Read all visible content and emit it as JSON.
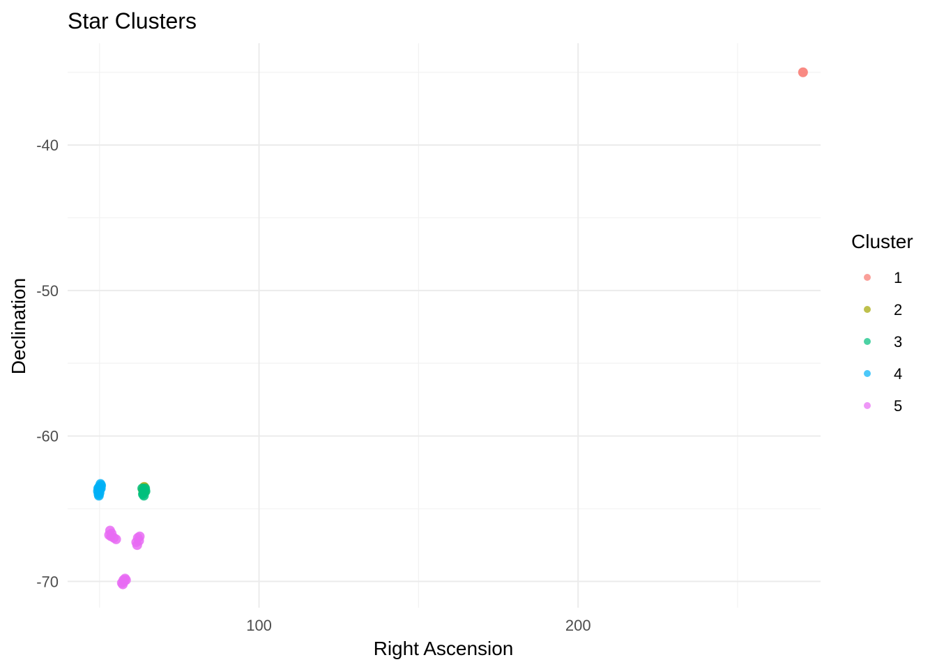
{
  "chart_data": {
    "type": "scatter",
    "title": "Star Clusters",
    "xlabel": "Right Ascension",
    "ylabel": "Declination",
    "xlim": [
      40,
      276
    ],
    "ylim": [
      -71.8,
      -33.0
    ],
    "x_ticks": [
      100,
      200
    ],
    "x_minor_ticks": [
      50,
      150,
      250
    ],
    "y_ticks": [
      -40,
      -50,
      -60,
      -70
    ],
    "y_minor_ticks": [
      -35,
      -45,
      -55,
      -65
    ],
    "grid": true,
    "legend": {
      "title": "Cluster",
      "position": "right"
    },
    "series": [
      {
        "name": "1",
        "color": "#F8766D",
        "points": [
          [
            270.5,
            -35.0
          ]
        ]
      },
      {
        "name": "2",
        "color": "#A3A500",
        "points": [
          [
            64.0,
            -63.5
          ],
          [
            63.6,
            -63.7
          ],
          [
            64.2,
            -63.8
          ]
        ]
      },
      {
        "name": "3",
        "color": "#00BF7D",
        "points": [
          [
            63.4,
            -63.6
          ],
          [
            63.8,
            -63.9
          ],
          [
            64.3,
            -63.6
          ],
          [
            63.6,
            -64.0
          ],
          [
            64.0,
            -63.7
          ],
          [
            63.9,
            -64.1
          ],
          [
            64.4,
            -63.8
          ]
        ]
      },
      {
        "name": "4",
        "color": "#00B0F6",
        "points": [
          [
            49.5,
            -63.8
          ],
          [
            49.9,
            -63.5
          ],
          [
            50.3,
            -63.3
          ],
          [
            49.7,
            -64.0
          ],
          [
            50.1,
            -63.7
          ],
          [
            50.5,
            -63.4
          ],
          [
            49.6,
            -63.6
          ],
          [
            50.0,
            -63.9
          ],
          [
            50.4,
            -63.6
          ],
          [
            49.8,
            -64.1
          ]
        ]
      },
      {
        "name": "5",
        "color": "#E76BF3",
        "points": [
          [
            53.0,
            -66.8
          ],
          [
            53.3,
            -66.5
          ],
          [
            53.6,
            -66.9
          ],
          [
            54.5,
            -67.0
          ],
          [
            55.2,
            -67.1
          ],
          [
            53.8,
            -66.7
          ],
          [
            61.5,
            -67.3
          ],
          [
            62.0,
            -67.0
          ],
          [
            62.4,
            -67.2
          ],
          [
            61.8,
            -67.5
          ],
          [
            62.6,
            -66.9
          ],
          [
            57.0,
            -70.1
          ],
          [
            57.5,
            -69.9
          ],
          [
            58.0,
            -69.8
          ],
          [
            57.3,
            -70.2
          ],
          [
            58.3,
            -69.9
          ],
          [
            57.7,
            -70.0
          ]
        ]
      }
    ]
  }
}
